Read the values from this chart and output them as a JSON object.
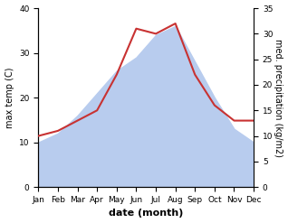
{
  "months": [
    "Jan",
    "Feb",
    "Mar",
    "Apr",
    "May",
    "Jun",
    "Jul",
    "Aug",
    "Sep",
    "Oct",
    "Nov",
    "Dec"
  ],
  "max_temp": [
    10,
    12,
    16,
    21,
    26,
    29,
    34,
    36,
    28,
    20,
    13,
    10
  ],
  "precipitation": [
    10,
    11,
    13,
    15,
    22,
    31,
    30,
    32,
    22,
    16,
    13,
    13
  ],
  "temp_ylim": [
    0,
    40
  ],
  "precip_ylim": [
    0,
    35
  ],
  "temp_yticks": [
    0,
    10,
    20,
    30,
    40
  ],
  "precip_yticks": [
    0,
    5,
    10,
    15,
    20,
    25,
    30,
    35
  ],
  "fill_color": "#b8ccee",
  "precip_line_color": "#c83232",
  "xlabel": "date (month)",
  "ylabel_left": "max temp (C)",
  "ylabel_right": "med. precipitation (kg/m2)",
  "label_fontsize": 7,
  "tick_fontsize": 6.5
}
